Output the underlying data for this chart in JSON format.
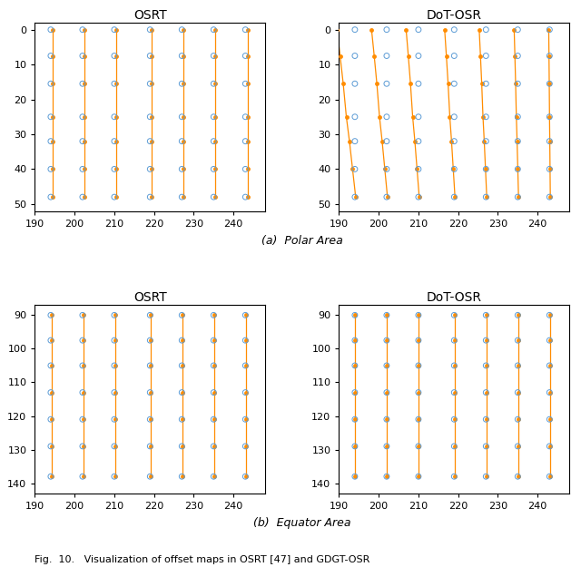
{
  "subplot_titles_top": [
    "OSRT",
    "DoT-OSR"
  ],
  "subplot_titles_bot": [
    "OSRT",
    "DoT-OSR"
  ],
  "row_label_top": "(a)  Polar Area",
  "row_label_bot": "(b)  Equator Area",
  "fig_caption": "Fig.  10.   Visualization of offset maps in OSRT [47] and GDGT-OSR",
  "orange_color": "#FF8C00",
  "blue_color": "#5B9BD5",
  "xlim": [
    190,
    248
  ],
  "polar_ylim": [
    52,
    -2
  ],
  "equator_ylim": [
    143,
    87
  ],
  "x_ticks": [
    190,
    200,
    210,
    220,
    230,
    240
  ],
  "polar_y_ticks": [
    0,
    10,
    20,
    30,
    40,
    50
  ],
  "equator_y_ticks": [
    90,
    100,
    110,
    120,
    130,
    140
  ],
  "blue_cols": [
    194,
    202,
    210,
    219,
    227,
    235,
    243
  ],
  "polar_rows": [
    0,
    7.5,
    15.5,
    25,
    32,
    40,
    48
  ],
  "equator_rows": [
    90,
    97.5,
    105,
    113,
    121,
    129,
    138
  ],
  "osrt_polar_top_offsets": [
    0.5,
    0.5,
    0.5,
    0.5,
    0.5,
    0.5,
    0.5
  ],
  "osrt_polar_bot_offsets": [
    0.5,
    0.5,
    0.5,
    0.5,
    0.5,
    0.5,
    0.5
  ],
  "dot_polar_top_offsets": [
    -4.5,
    -3.8,
    -3.1,
    -2.4,
    -1.7,
    -0.9,
    -0.2
  ],
  "dot_polar_bot_offsets": [
    0.2,
    0.2,
    0.2,
    0.2,
    0.2,
    0.2,
    0.2
  ],
  "osrt_equator_top_offsets": [
    0.2,
    0.2,
    0.2,
    0.2,
    0.2,
    0.2,
    0.2
  ],
  "osrt_equator_bot_offsets": [
    0.2,
    0.2,
    0.2,
    0.2,
    0.2,
    0.2,
    0.2
  ],
  "dot_equator_top_offsets": [
    0.1,
    0.1,
    0.1,
    0.1,
    0.1,
    0.1,
    0.1
  ],
  "dot_equator_bot_offsets": [
    0.1,
    0.1,
    0.1,
    0.1,
    0.1,
    0.1,
    0.1
  ],
  "orange_markersize": 3.5,
  "blue_markersize_s": 18,
  "blue_lw": 0.7,
  "line_width": 0.9,
  "tick_fontsize": 8,
  "title_fontsize": 10,
  "label_fontsize": 9,
  "caption_fontsize": 8
}
